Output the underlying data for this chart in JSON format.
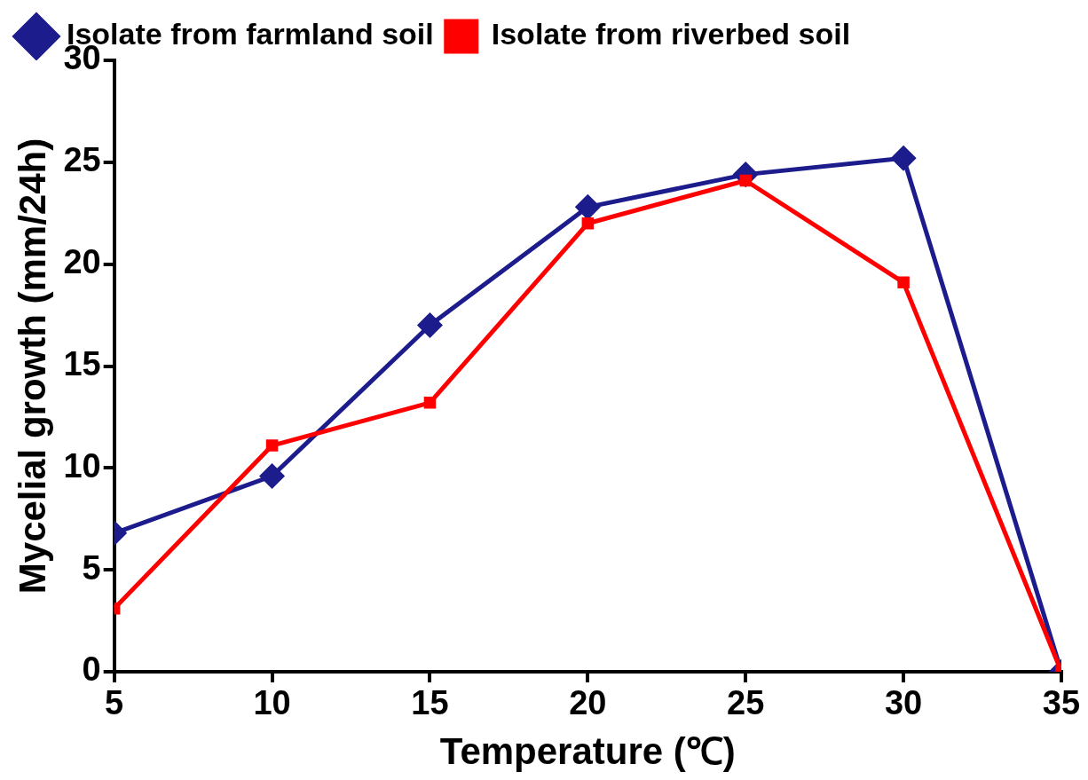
{
  "chart_data": {
    "type": "line",
    "xlabel": "Temperature (℃)",
    "ylabel": "Mycelial growth (mm/24h)",
    "x": [
      5,
      10,
      15,
      20,
      25,
      30,
      35
    ],
    "series": [
      {
        "name": "Isolate from farmland soil",
        "color": "#1c1c8c",
        "marker": "diamond",
        "values": [
          6.8,
          9.6,
          17.0,
          22.8,
          24.4,
          25.2,
          0
        ]
      },
      {
        "name": "Isolate from riverbed soil",
        "color": "#ff0000",
        "marker": "square",
        "values": [
          3.1,
          11.1,
          13.2,
          22.0,
          24.1,
          19.1,
          0
        ]
      }
    ],
    "xlim": [
      5,
      35
    ],
    "xticks": [
      5,
      10,
      15,
      20,
      25,
      30,
      35
    ],
    "ylim": [
      0,
      30
    ],
    "yticks": [
      0,
      5,
      10,
      15,
      20,
      25,
      30
    ],
    "grid": false,
    "legend": "top left",
    "line_style": "solid"
  }
}
